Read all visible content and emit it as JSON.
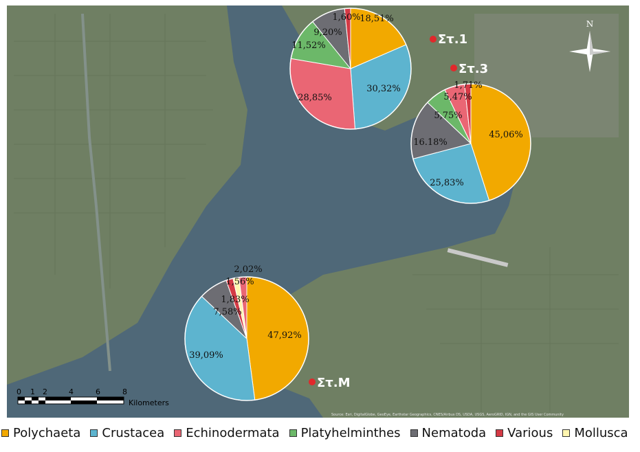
{
  "map": {
    "scale_labels": [
      "0",
      "1",
      "2",
      "4",
      "6",
      "8"
    ],
    "scale_unit": "Kilometers",
    "north": "N",
    "attribution": "Source: Esri, DigitalGlobe, GeoEye, Earthstar Geographics, CNES/Airbus DS, USDA, USGS, AeroGRID, IGN, and the GIS User Community",
    "stations": [
      {
        "label": "Στ.1"
      },
      {
        "label": "Στ.3"
      },
      {
        "label": "Στ.M"
      }
    ],
    "colors": {
      "land": "#6f7f63",
      "sea": "#4f6878",
      "marker": "#e0282b"
    }
  },
  "legend": [
    {
      "label": "Polychaeta",
      "color": "#f2a900"
    },
    {
      "label": "Crustacea",
      "color": "#5db4cf"
    },
    {
      "label": "Echinodermata",
      "color": "#ea6674"
    },
    {
      "label": "Platyhelminthes",
      "color": "#6cb869"
    },
    {
      "label": "Nematoda",
      "color": "#6d6d73"
    },
    {
      "label": "Various",
      "color": "#d43a45"
    },
    {
      "label": "Mollusca",
      "color": "#fff6b0"
    }
  ],
  "chart_data": [
    {
      "type": "pie",
      "station": "Στ.1",
      "categories": [
        "Polychaeta",
        "Crustacea",
        "Echinodermata",
        "Platyhelminthes",
        "Nematoda",
        "Various"
      ],
      "values": [
        18.51,
        30.32,
        28.85,
        11.52,
        9.2,
        1.6
      ],
      "labels": [
        "18,51%",
        "30,32%",
        "28,85%",
        "11,52%",
        "9,20%",
        "1,60%"
      ]
    },
    {
      "type": "pie",
      "station": "Στ.3",
      "categories": [
        "Polychaeta",
        "Crustacea",
        "Nematoda",
        "Platyhelminthes",
        "Echinodermata",
        "Various"
      ],
      "values": [
        45.06,
        25.83,
        16.18,
        5.75,
        5.47,
        1.71
      ],
      "labels": [
        "45,06%",
        "25,83%",
        "16.18%",
        "5,75%",
        "5,47%",
        "1,71%"
      ]
    },
    {
      "type": "pie",
      "station": "Στ.M",
      "categories": [
        "Polychaeta",
        "Crustacea",
        "Nematoda",
        "Various",
        "Mollusca",
        "Echinodermata"
      ],
      "values": [
        47.92,
        39.09,
        7.58,
        1.83,
        1.56,
        2.02
      ],
      "labels": [
        "47,92%",
        "39,09%",
        "7,58%",
        "1,83%",
        "1,56%",
        "2,02%"
      ]
    }
  ]
}
